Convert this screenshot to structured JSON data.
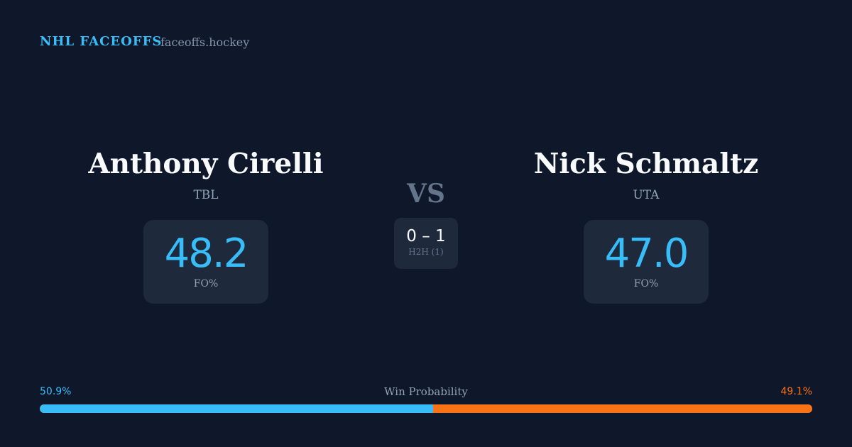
{
  "header": {
    "brand": "NHL FACEOFFS",
    "site": "faceoffs.hockey"
  },
  "players": [
    {
      "name": "Anthony Cirelli",
      "team": "TBL",
      "fo_pct": "48.2",
      "fo_label": "FO%"
    },
    {
      "name": "Nick Schmaltz",
      "team": "UTA",
      "fo_pct": "47.0",
      "fo_label": "FO%"
    }
  ],
  "vs": "VS",
  "h2h": {
    "score": "0 – 1",
    "label": "H2H (1)"
  },
  "win_probability": {
    "label": "Win Probability",
    "left": "50.9%",
    "right": "49.1%",
    "left_value": 50.9,
    "right_value": 49.1
  },
  "colors": {
    "background": "#0f172a",
    "card": "#1e293b",
    "accent_left": "#38bdf8",
    "accent_right": "#f97316"
  }
}
